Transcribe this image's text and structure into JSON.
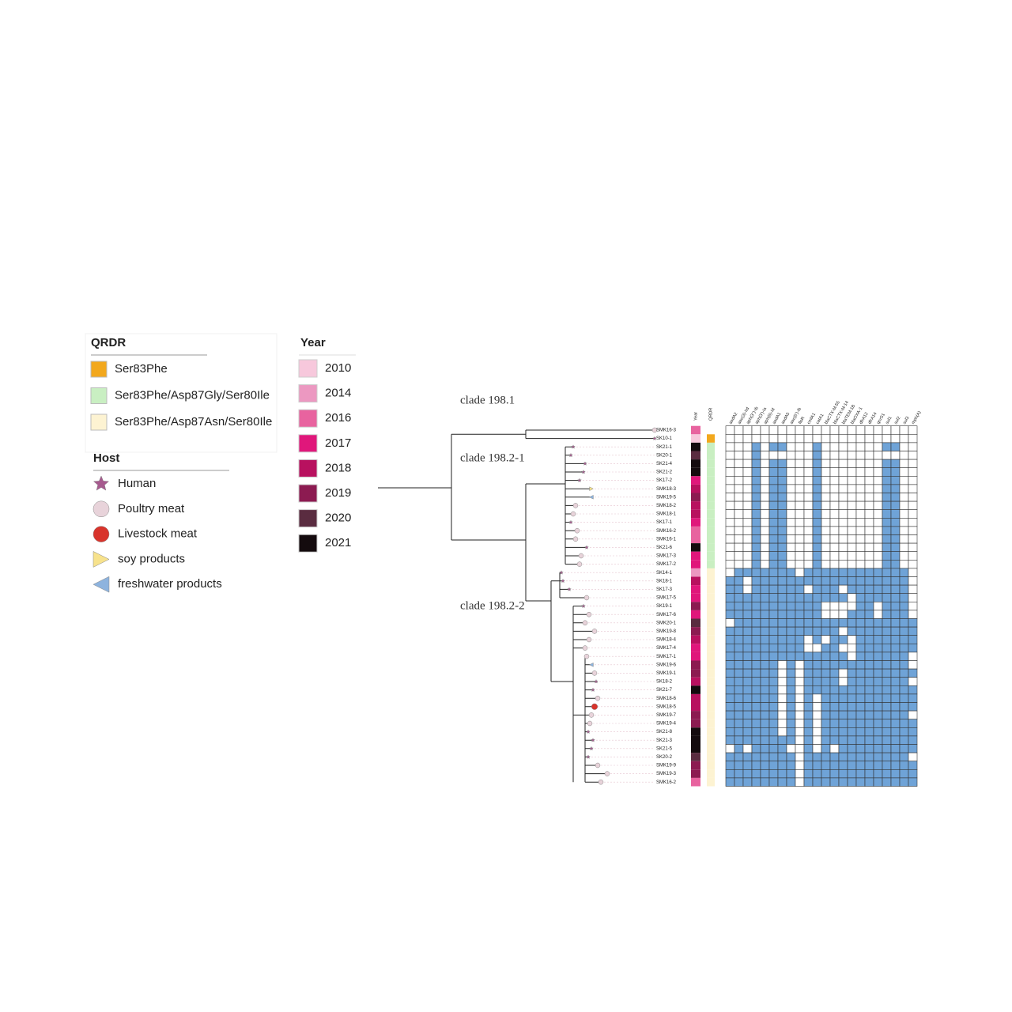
{
  "legends": {
    "qrdr": {
      "title": "QRDR",
      "items": [
        {
          "label": "Ser83Phe",
          "color": "#f2a81d"
        },
        {
          "label": "Ser83Phe/Asp87Gly/Ser80Ile",
          "color": "#c9efc2"
        },
        {
          "label": "Ser83Phe/Asp87Asn/Ser80Ile",
          "color": "#fdf3d2"
        }
      ]
    },
    "host": {
      "title": "Host",
      "items": [
        {
          "label": "Human",
          "color": "#a65a8e",
          "shape": "star"
        },
        {
          "label": "Poultry meat",
          "color": "#e8d3da",
          "shape": "circle"
        },
        {
          "label": "Livestock meat",
          "color": "#d8342c",
          "shape": "circle"
        },
        {
          "label": "soy products",
          "color": "#f7e28c",
          "shape": "triangle-right"
        },
        {
          "label": "freshwater products",
          "color": "#8db3de",
          "shape": "triangle-left"
        }
      ]
    },
    "year": {
      "title": "Year",
      "items": [
        {
          "label": 2010,
          "color": "#f7c8dc"
        },
        {
          "label": 2014,
          "color": "#ec98c1"
        },
        {
          "label": 2016,
          "color": "#e8639f"
        },
        {
          "label": 2017,
          "color": "#e0177b"
        },
        {
          "label": 2018,
          "color": "#b8115f"
        },
        {
          "label": 2019,
          "color": "#8c1b51"
        },
        {
          "label": 2020,
          "color": "#5a2c40"
        },
        {
          "label": 2021,
          "color": "#140b0e"
        }
      ]
    }
  },
  "clade_labels": [
    "clade 198.1",
    "clade 198.2-1",
    "clade 198.2-2"
  ],
  "column_headers": [
    "Year",
    "QRDR"
  ],
  "genes": [
    "aadA2",
    "aac(3)-IId",
    "aph(3'')-Ib",
    "aph(3')-Ia",
    "aph(6)-Id",
    "aadA1",
    "aadA5",
    "aac(6')-Ib",
    "floR",
    "cmlA1",
    "catA1",
    "blaCTX-M-55",
    "blaCTX-M-14",
    "blaTEM-1B",
    "blaOXA-1",
    "dfrA12",
    "dfrA14",
    "qnrS1",
    "sul1",
    "sul2",
    "sul3",
    "mph(A)"
  ],
  "leaves": [
    {
      "label": "SMK16-3",
      "year": 2016,
      "qrdr": null,
      "host": "Poultry meat"
    },
    {
      "label": "SK10-1",
      "year": 2010,
      "qrdr": "Ser83Phe",
      "host": "Human"
    },
    {
      "label": "SK21-1",
      "year": 2021,
      "qrdr": "Ser83Phe/Asp87Gly/Ser80Ile",
      "host": "Human"
    },
    {
      "label": "SK20-1",
      "year": 2020,
      "qrdr": "Ser83Phe/Asp87Gly/Ser80Ile",
      "host": "Human"
    },
    {
      "label": "SK21-4",
      "year": 2021,
      "qrdr": "Ser83Phe/Asp87Gly/Ser80Ile",
      "host": "Human",
      "label_color": "#e0403a"
    },
    {
      "label": "SK21-2",
      "year": 2021,
      "qrdr": "Ser83Phe/Asp87Gly/Ser80Ile",
      "host": "Human",
      "label_color": "#e0403a"
    },
    {
      "label": "SK17-2",
      "year": 2017,
      "qrdr": "Ser83Phe/Asp87Gly/Ser80Ile",
      "host": "Human"
    },
    {
      "label": "SMK18-3",
      "year": 2018,
      "qrdr": "Ser83Phe/Asp87Gly/Ser80Ile",
      "host": "soy products"
    },
    {
      "label": "SMK19-5",
      "year": 2019,
      "qrdr": "Ser83Phe/Asp87Gly/Ser80Ile",
      "host": "freshwater products"
    },
    {
      "label": "SMK18-2",
      "year": 2018,
      "qrdr": "Ser83Phe/Asp87Gly/Ser80Ile",
      "host": "Poultry meat"
    },
    {
      "label": "SMK18-1",
      "year": 2018,
      "qrdr": "Ser83Phe/Asp87Gly/Ser80Ile",
      "host": "Poultry meat"
    },
    {
      "label": "SK17-1",
      "year": 2017,
      "qrdr": "Ser83Phe/Asp87Gly/Ser80Ile",
      "host": "Human"
    },
    {
      "label": "SMK16-2",
      "year": 2016,
      "qrdr": "Ser83Phe/Asp87Gly/Ser80Ile",
      "host": "Poultry meat"
    },
    {
      "label": "SMK16-1",
      "year": 2016,
      "qrdr": "Ser83Phe/Asp87Gly/Ser80Ile",
      "host": "Poultry meat"
    },
    {
      "label": "SK21-6",
      "year": 2021,
      "qrdr": "Ser83Phe/Asp87Gly/Ser80Ile",
      "host": "Human",
      "label_color": "#e0403a"
    },
    {
      "label": "SMK17-3",
      "year": 2017,
      "qrdr": "Ser83Phe/Asp87Gly/Ser80Ile",
      "host": "Poultry meat"
    },
    {
      "label": "SMK17-2",
      "year": 2017,
      "qrdr": "Ser83Phe/Asp87Gly/Ser80Ile",
      "host": "Poultry meat"
    },
    {
      "label": "SK14-1",
      "year": 2014,
      "qrdr": "Ser83Phe/Asp87Asn/Ser80Ile",
      "host": "Human"
    },
    {
      "label": "SK18-1",
      "year": 2018,
      "qrdr": "Ser83Phe/Asp87Asn/Ser80Ile",
      "host": "Human"
    },
    {
      "label": "SK17-3",
      "year": 2017,
      "qrdr": "Ser83Phe/Asp87Asn/Ser80Ile",
      "host": "Human"
    },
    {
      "label": "SMK17-5",
      "year": 2017,
      "qrdr": "Ser83Phe/Asp87Asn/Ser80Ile",
      "host": "Poultry meat"
    },
    {
      "label": "SK19-1",
      "year": 2019,
      "qrdr": "Ser83Phe/Asp87Asn/Ser80Ile",
      "host": "Human"
    },
    {
      "label": "SMK17-6",
      "year": 2017,
      "qrdr": "Ser83Phe/Asp87Asn/Ser80Ile",
      "host": "Poultry meat"
    },
    {
      "label": "SMK20-1",
      "year": 2020,
      "qrdr": "Ser83Phe/Asp87Asn/Ser80Ile",
      "host": "Poultry meat"
    },
    {
      "label": "SMK19-8",
      "year": 2019,
      "qrdr": "Ser83Phe/Asp87Asn/Ser80Ile",
      "host": "Poultry meat"
    },
    {
      "label": "SMK18-4",
      "year": 2018,
      "qrdr": "Ser83Phe/Asp87Asn/Ser80Ile",
      "host": "Poultry meat"
    },
    {
      "label": "SMK17-4",
      "year": 2017,
      "qrdr": "Ser83Phe/Asp87Asn/Ser80Ile",
      "host": "Poultry meat"
    },
    {
      "label": "SMK17-1",
      "year": 2017,
      "qrdr": "Ser83Phe/Asp87Asn/Ser80Ile",
      "host": "Poultry meat"
    },
    {
      "label": "SMK19-6",
      "year": 2019,
      "qrdr": "Ser83Phe/Asp87Asn/Ser80Ile",
      "host": "freshwater products"
    },
    {
      "label": "SMK19-1",
      "year": 2019,
      "qrdr": "Ser83Phe/Asp87Asn/Ser80Ile",
      "host": "Poultry meat"
    },
    {
      "label": "SK18-2",
      "year": 2018,
      "qrdr": "Ser83Phe/Asp87Asn/Ser80Ile",
      "host": "Human"
    },
    {
      "label": "SK21-7",
      "year": 2021,
      "qrdr": "Ser83Phe/Asp87Asn/Ser80Ile",
      "host": "Human",
      "label_color": "#e0403a"
    },
    {
      "label": "SMK18-6",
      "year": 2018,
      "qrdr": "Ser83Phe/Asp87Asn/Ser80Ile",
      "host": "Poultry meat"
    },
    {
      "label": "SMK18-5",
      "year": 2018,
      "qrdr": "Ser83Phe/Asp87Asn/Ser80Ile",
      "host": "Livestock meat"
    },
    {
      "label": "SMK19-7",
      "year": 2019,
      "qrdr": "Ser83Phe/Asp87Asn/Ser80Ile",
      "host": "Poultry meat"
    },
    {
      "label": "SMK19-4",
      "year": 2019,
      "qrdr": "Ser83Phe/Asp87Asn/Ser80Ile",
      "host": "Poultry meat"
    },
    {
      "label": "SK21-8",
      "year": 2021,
      "qrdr": "Ser83Phe/Asp87Asn/Ser80Ile",
      "host": "Human"
    },
    {
      "label": "SK21-3",
      "year": 2021,
      "qrdr": "Ser83Phe/Asp87Asn/Ser80Ile",
      "host": "Human"
    },
    {
      "label": "SK21-5",
      "year": 2021,
      "qrdr": "Ser83Phe/Asp87Asn/Ser80Ile",
      "host": "Human",
      "label_color": "#e0403a"
    },
    {
      "label": "SK20-2",
      "year": 2020,
      "qrdr": "Ser83Phe/Asp87Asn/Ser80Ile",
      "host": "Human"
    },
    {
      "label": "SMK19-9",
      "year": 2019,
      "qrdr": "Ser83Phe/Asp87Asn/Ser80Ile",
      "host": "Poultry meat"
    },
    {
      "label": "SMK19-3",
      "year": 2019,
      "qrdr": "Ser83Phe/Asp87Asn/Ser80Ile",
      "host": "Poultry meat"
    },
    {
      "label": "SMK16-2",
      "year": 2016,
      "qrdr": "Ser83Phe/Asp87Asn/Ser80Ile",
      "host": "Poultry meat"
    }
  ],
  "heatmap": {
    "color": "#6fa3d7",
    "rows": [
      [
        0,
        0,
        0,
        0,
        0,
        0,
        0,
        0,
        0,
        0,
        0,
        0,
        0,
        0,
        0,
        0,
        0,
        0,
        0,
        0,
        0,
        0
      ],
      [
        0,
        0,
        0,
        0,
        0,
        0,
        0,
        0,
        0,
        0,
        0,
        0,
        0,
        0,
        0,
        0,
        0,
        0,
        0,
        0,
        0,
        0
      ],
      [
        0,
        0,
        0,
        1,
        0,
        1,
        1,
        0,
        0,
        0,
        1,
        0,
        0,
        0,
        0,
        0,
        0,
        0,
        1,
        1,
        0,
        0
      ],
      [
        0,
        0,
        0,
        1,
        0,
        0,
        0,
        0,
        0,
        0,
        1,
        0,
        0,
        0,
        0,
        0,
        0,
        0,
        0,
        0,
        0,
        0
      ],
      [
        0,
        0,
        0,
        1,
        0,
        1,
        1,
        0,
        0,
        0,
        1,
        0,
        0,
        0,
        0,
        0,
        0,
        0,
        1,
        1,
        0,
        0
      ],
      [
        0,
        0,
        0,
        1,
        0,
        1,
        1,
        0,
        0,
        0,
        1,
        0,
        0,
        0,
        0,
        0,
        0,
        0,
        1,
        1,
        0,
        0
      ],
      [
        0,
        0,
        0,
        1,
        0,
        1,
        1,
        0,
        0,
        0,
        1,
        0,
        0,
        0,
        0,
        0,
        0,
        0,
        1,
        1,
        0,
        0
      ],
      [
        0,
        0,
        0,
        1,
        0,
        1,
        1,
        0,
        0,
        0,
        1,
        0,
        0,
        0,
        0,
        0,
        0,
        0,
        1,
        1,
        0,
        0
      ],
      [
        0,
        0,
        0,
        1,
        0,
        1,
        1,
        0,
        0,
        0,
        1,
        0,
        0,
        0,
        0,
        0,
        0,
        0,
        1,
        1,
        0,
        0
      ],
      [
        0,
        0,
        0,
        1,
        0,
        1,
        1,
        0,
        0,
        0,
        1,
        0,
        0,
        0,
        0,
        0,
        0,
        0,
        1,
        1,
        0,
        0
      ],
      [
        0,
        0,
        0,
        1,
        0,
        1,
        1,
        0,
        0,
        0,
        1,
        0,
        0,
        0,
        0,
        0,
        0,
        0,
        1,
        1,
        0,
        0
      ],
      [
        0,
        0,
        0,
        1,
        0,
        1,
        1,
        0,
        0,
        0,
        1,
        0,
        0,
        0,
        0,
        0,
        0,
        0,
        1,
        1,
        0,
        0
      ],
      [
        0,
        0,
        0,
        1,
        0,
        1,
        1,
        0,
        0,
        0,
        1,
        0,
        0,
        0,
        0,
        0,
        0,
        0,
        1,
        1,
        0,
        0
      ],
      [
        0,
        0,
        0,
        1,
        0,
        1,
        1,
        0,
        0,
        0,
        1,
        0,
        0,
        0,
        0,
        0,
        0,
        0,
        1,
        1,
        0,
        0
      ],
      [
        0,
        0,
        0,
        1,
        0,
        1,
        1,
        0,
        0,
        0,
        1,
        0,
        0,
        0,
        0,
        0,
        0,
        0,
        1,
        1,
        0,
        0
      ],
      [
        0,
        0,
        0,
        1,
        0,
        1,
        1,
        0,
        0,
        0,
        1,
        0,
        0,
        0,
        0,
        0,
        0,
        0,
        1,
        1,
        0,
        0
      ],
      [
        0,
        0,
        0,
        1,
        0,
        1,
        1,
        0,
        0,
        0,
        1,
        0,
        0,
        0,
        0,
        0,
        0,
        0,
        1,
        1,
        0,
        0
      ],
      [
        0,
        1,
        1,
        1,
        1,
        1,
        1,
        1,
        0,
        1,
        1,
        1,
        1,
        1,
        1,
        1,
        1,
        1,
        1,
        1,
        1,
        0
      ],
      [
        1,
        1,
        0,
        1,
        1,
        1,
        1,
        1,
        1,
        1,
        1,
        1,
        1,
        1,
        1,
        1,
        1,
        1,
        1,
        1,
        1,
        0
      ],
      [
        1,
        1,
        0,
        1,
        1,
        1,
        1,
        1,
        1,
        0,
        1,
        1,
        1,
        0,
        1,
        1,
        1,
        1,
        1,
        1,
        1,
        0
      ],
      [
        1,
        1,
        1,
        1,
        1,
        1,
        1,
        1,
        1,
        1,
        1,
        1,
        1,
        1,
        0,
        1,
        1,
        1,
        1,
        1,
        1,
        0
      ],
      [
        1,
        1,
        1,
        1,
        1,
        1,
        1,
        1,
        1,
        1,
        1,
        0,
        0,
        0,
        0,
        1,
        1,
        0,
        1,
        1,
        1,
        0
      ],
      [
        1,
        1,
        1,
        1,
        1,
        1,
        1,
        1,
        1,
        1,
        1,
        0,
        0,
        0,
        1,
        1,
        1,
        0,
        1,
        1,
        1,
        0
      ],
      [
        0,
        1,
        1,
        1,
        1,
        1,
        1,
        1,
        1,
        1,
        1,
        1,
        1,
        1,
        1,
        1,
        1,
        1,
        1,
        1,
        1,
        1
      ],
      [
        1,
        1,
        1,
        1,
        1,
        1,
        1,
        1,
        1,
        1,
        1,
        1,
        1,
        0,
        1,
        1,
        1,
        1,
        1,
        1,
        1,
        1
      ],
      [
        1,
        1,
        1,
        1,
        1,
        1,
        1,
        1,
        1,
        0,
        1,
        0,
        1,
        1,
        0,
        1,
        1,
        1,
        1,
        1,
        1,
        1
      ],
      [
        1,
        1,
        1,
        1,
        1,
        1,
        1,
        1,
        1,
        0,
        0,
        1,
        1,
        0,
        0,
        1,
        1,
        1,
        1,
        1,
        1,
        1
      ],
      [
        1,
        1,
        1,
        1,
        1,
        1,
        1,
        1,
        1,
        1,
        1,
        1,
        1,
        1,
        0,
        1,
        1,
        1,
        1,
        1,
        1,
        0
      ],
      [
        1,
        1,
        1,
        1,
        1,
        1,
        0,
        1,
        0,
        1,
        1,
        1,
        1,
        1,
        1,
        1,
        1,
        1,
        1,
        1,
        1,
        0
      ],
      [
        1,
        1,
        1,
        1,
        1,
        1,
        0,
        1,
        0,
        1,
        1,
        1,
        1,
        0,
        1,
        1,
        1,
        1,
        1,
        1,
        1,
        1
      ],
      [
        1,
        1,
        1,
        1,
        1,
        1,
        0,
        1,
        0,
        1,
        1,
        1,
        1,
        0,
        1,
        1,
        1,
        1,
        1,
        1,
        1,
        0
      ],
      [
        1,
        1,
        1,
        1,
        1,
        1,
        0,
        1,
        0,
        1,
        1,
        1,
        1,
        1,
        1,
        1,
        1,
        1,
        1,
        1,
        1,
        1
      ],
      [
        1,
        1,
        1,
        1,
        1,
        1,
        0,
        1,
        0,
        1,
        0,
        1,
        1,
        1,
        1,
        1,
        1,
        1,
        1,
        1,
        1,
        1
      ],
      [
        1,
        1,
        1,
        1,
        1,
        1,
        0,
        1,
        0,
        1,
        0,
        1,
        1,
        1,
        1,
        1,
        1,
        1,
        1,
        1,
        1,
        1
      ],
      [
        1,
        1,
        1,
        1,
        1,
        1,
        0,
        1,
        0,
        1,
        0,
        1,
        1,
        1,
        1,
        1,
        1,
        1,
        1,
        1,
        1,
        0
      ],
      [
        1,
        1,
        1,
        1,
        1,
        1,
        0,
        1,
        0,
        1,
        0,
        1,
        1,
        1,
        1,
        1,
        1,
        1,
        1,
        1,
        1,
        1
      ],
      [
        1,
        1,
        1,
        1,
        1,
        1,
        0,
        1,
        0,
        1,
        0,
        1,
        1,
        1,
        1,
        1,
        1,
        1,
        1,
        1,
        1,
        1
      ],
      [
        1,
        1,
        1,
        1,
        1,
        1,
        1,
        1,
        0,
        1,
        0,
        1,
        1,
        1,
        1,
        1,
        1,
        1,
        1,
        1,
        1,
        1
      ],
      [
        0,
        1,
        0,
        1,
        1,
        1,
        1,
        0,
        0,
        1,
        0,
        1,
        0,
        1,
        1,
        1,
        1,
        1,
        1,
        1,
        1,
        1
      ],
      [
        1,
        1,
        1,
        1,
        1,
        1,
        1,
        1,
        0,
        1,
        1,
        1,
        1,
        1,
        1,
        1,
        1,
        1,
        1,
        1,
        1,
        0
      ],
      [
        1,
        1,
        1,
        1,
        1,
        1,
        1,
        1,
        0,
        1,
        1,
        1,
        1,
        1,
        1,
        1,
        1,
        1,
        1,
        1,
        1,
        1
      ],
      [
        1,
        1,
        1,
        1,
        1,
        1,
        1,
        1,
        0,
        1,
        1,
        1,
        1,
        1,
        1,
        1,
        1,
        1,
        1,
        1,
        1,
        1
      ],
      [
        1,
        1,
        1,
        1,
        1,
        1,
        1,
        1,
        0,
        1,
        1,
        1,
        1,
        1,
        1,
        1,
        1,
        1,
        1,
        1,
        1,
        1
      ]
    ]
  }
}
